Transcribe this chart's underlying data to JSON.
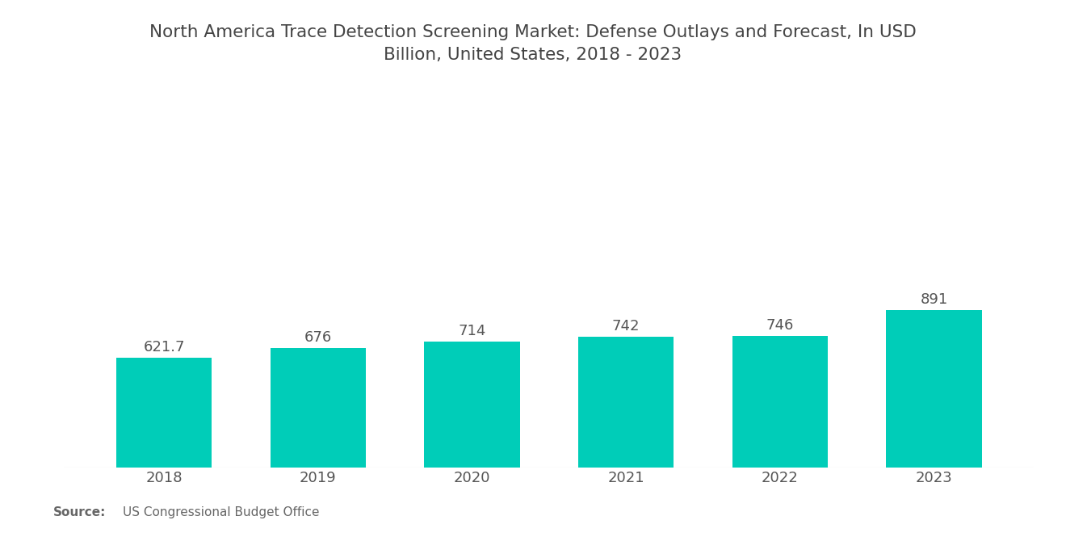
{
  "title": "North America Trace Detection Screening Market: Defense Outlays and Forecast, In USD\nBillion, United States, 2018 - 2023",
  "categories": [
    "2018",
    "2019",
    "2020",
    "2021",
    "2022",
    "2023"
  ],
  "values": [
    621.7,
    676,
    714,
    742,
    746,
    891
  ],
  "labels": [
    "621.7",
    "676",
    "714",
    "742",
    "746",
    "891"
  ],
  "bar_color": "#00CDB8",
  "background_color": "#ffffff",
  "title_fontsize": 15.5,
  "label_fontsize": 13,
  "tick_fontsize": 13,
  "source_bold": "Source:",
  "source_text": "US Congressional Budget Office",
  "ylim": [
    0,
    1800
  ],
  "bar_width": 0.62
}
